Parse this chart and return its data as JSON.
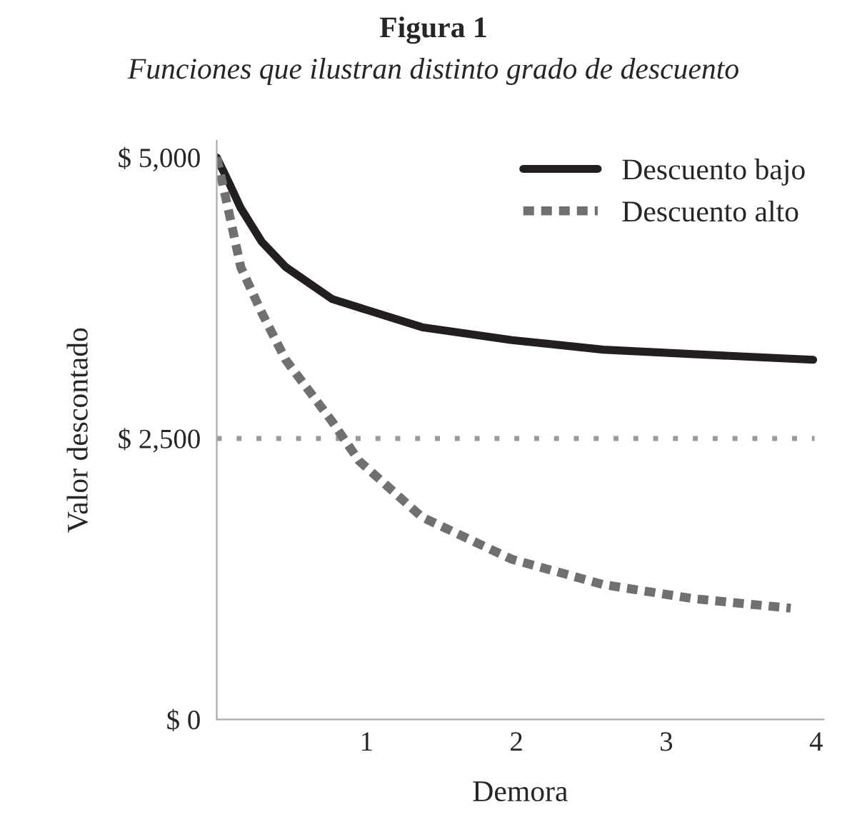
{
  "chart_data": {
    "type": "line",
    "title": "Figura 1",
    "subtitle": "Funciones que ilustran distinto grado de descuento",
    "xlabel": "Demora",
    "ylabel": "Valor descontado",
    "xlim": [
      0,
      4.05
    ],
    "xticks": [
      1,
      2,
      3,
      4
    ],
    "ylim": [
      0,
      5150
    ],
    "yticks": [
      {
        "value": 0,
        "label": "$ 0"
      },
      {
        "value": 2500,
        "label": "$ 2,500"
      },
      {
        "value": 5000,
        "label": "$ 5,000"
      }
    ],
    "series": [
      {
        "name": "Descuento bajo",
        "color": "#231f20",
        "line_style": "solid",
        "x": [
          0,
          0.08,
          0.16,
          0.3,
          0.46,
          0.77,
          1.37,
          1.97,
          2.58,
          3.18,
          3.98
        ],
        "values": [
          5000,
          4780,
          4550,
          4250,
          4025,
          3740,
          3490,
          3375,
          3290,
          3250,
          3200
        ]
      },
      {
        "name": "Descuento alto",
        "color": "#707070",
        "line_style": "dashed",
        "x": [
          0,
          0.08,
          0.16,
          0.3,
          0.46,
          0.77,
          0.95,
          1.37,
          1.97,
          2.58,
          3.18,
          3.83
        ],
        "values": [
          5000,
          4520,
          4025,
          3620,
          3200,
          2650,
          2300,
          1800,
          1425,
          1200,
          1075,
          990
        ]
      }
    ],
    "ref_lines": [
      {
        "axis": "y",
        "value": 2500,
        "color": "#9a9a9a",
        "line_style": "dotted"
      }
    ],
    "legend": "top right",
    "grid": false,
    "marker": "none"
  }
}
